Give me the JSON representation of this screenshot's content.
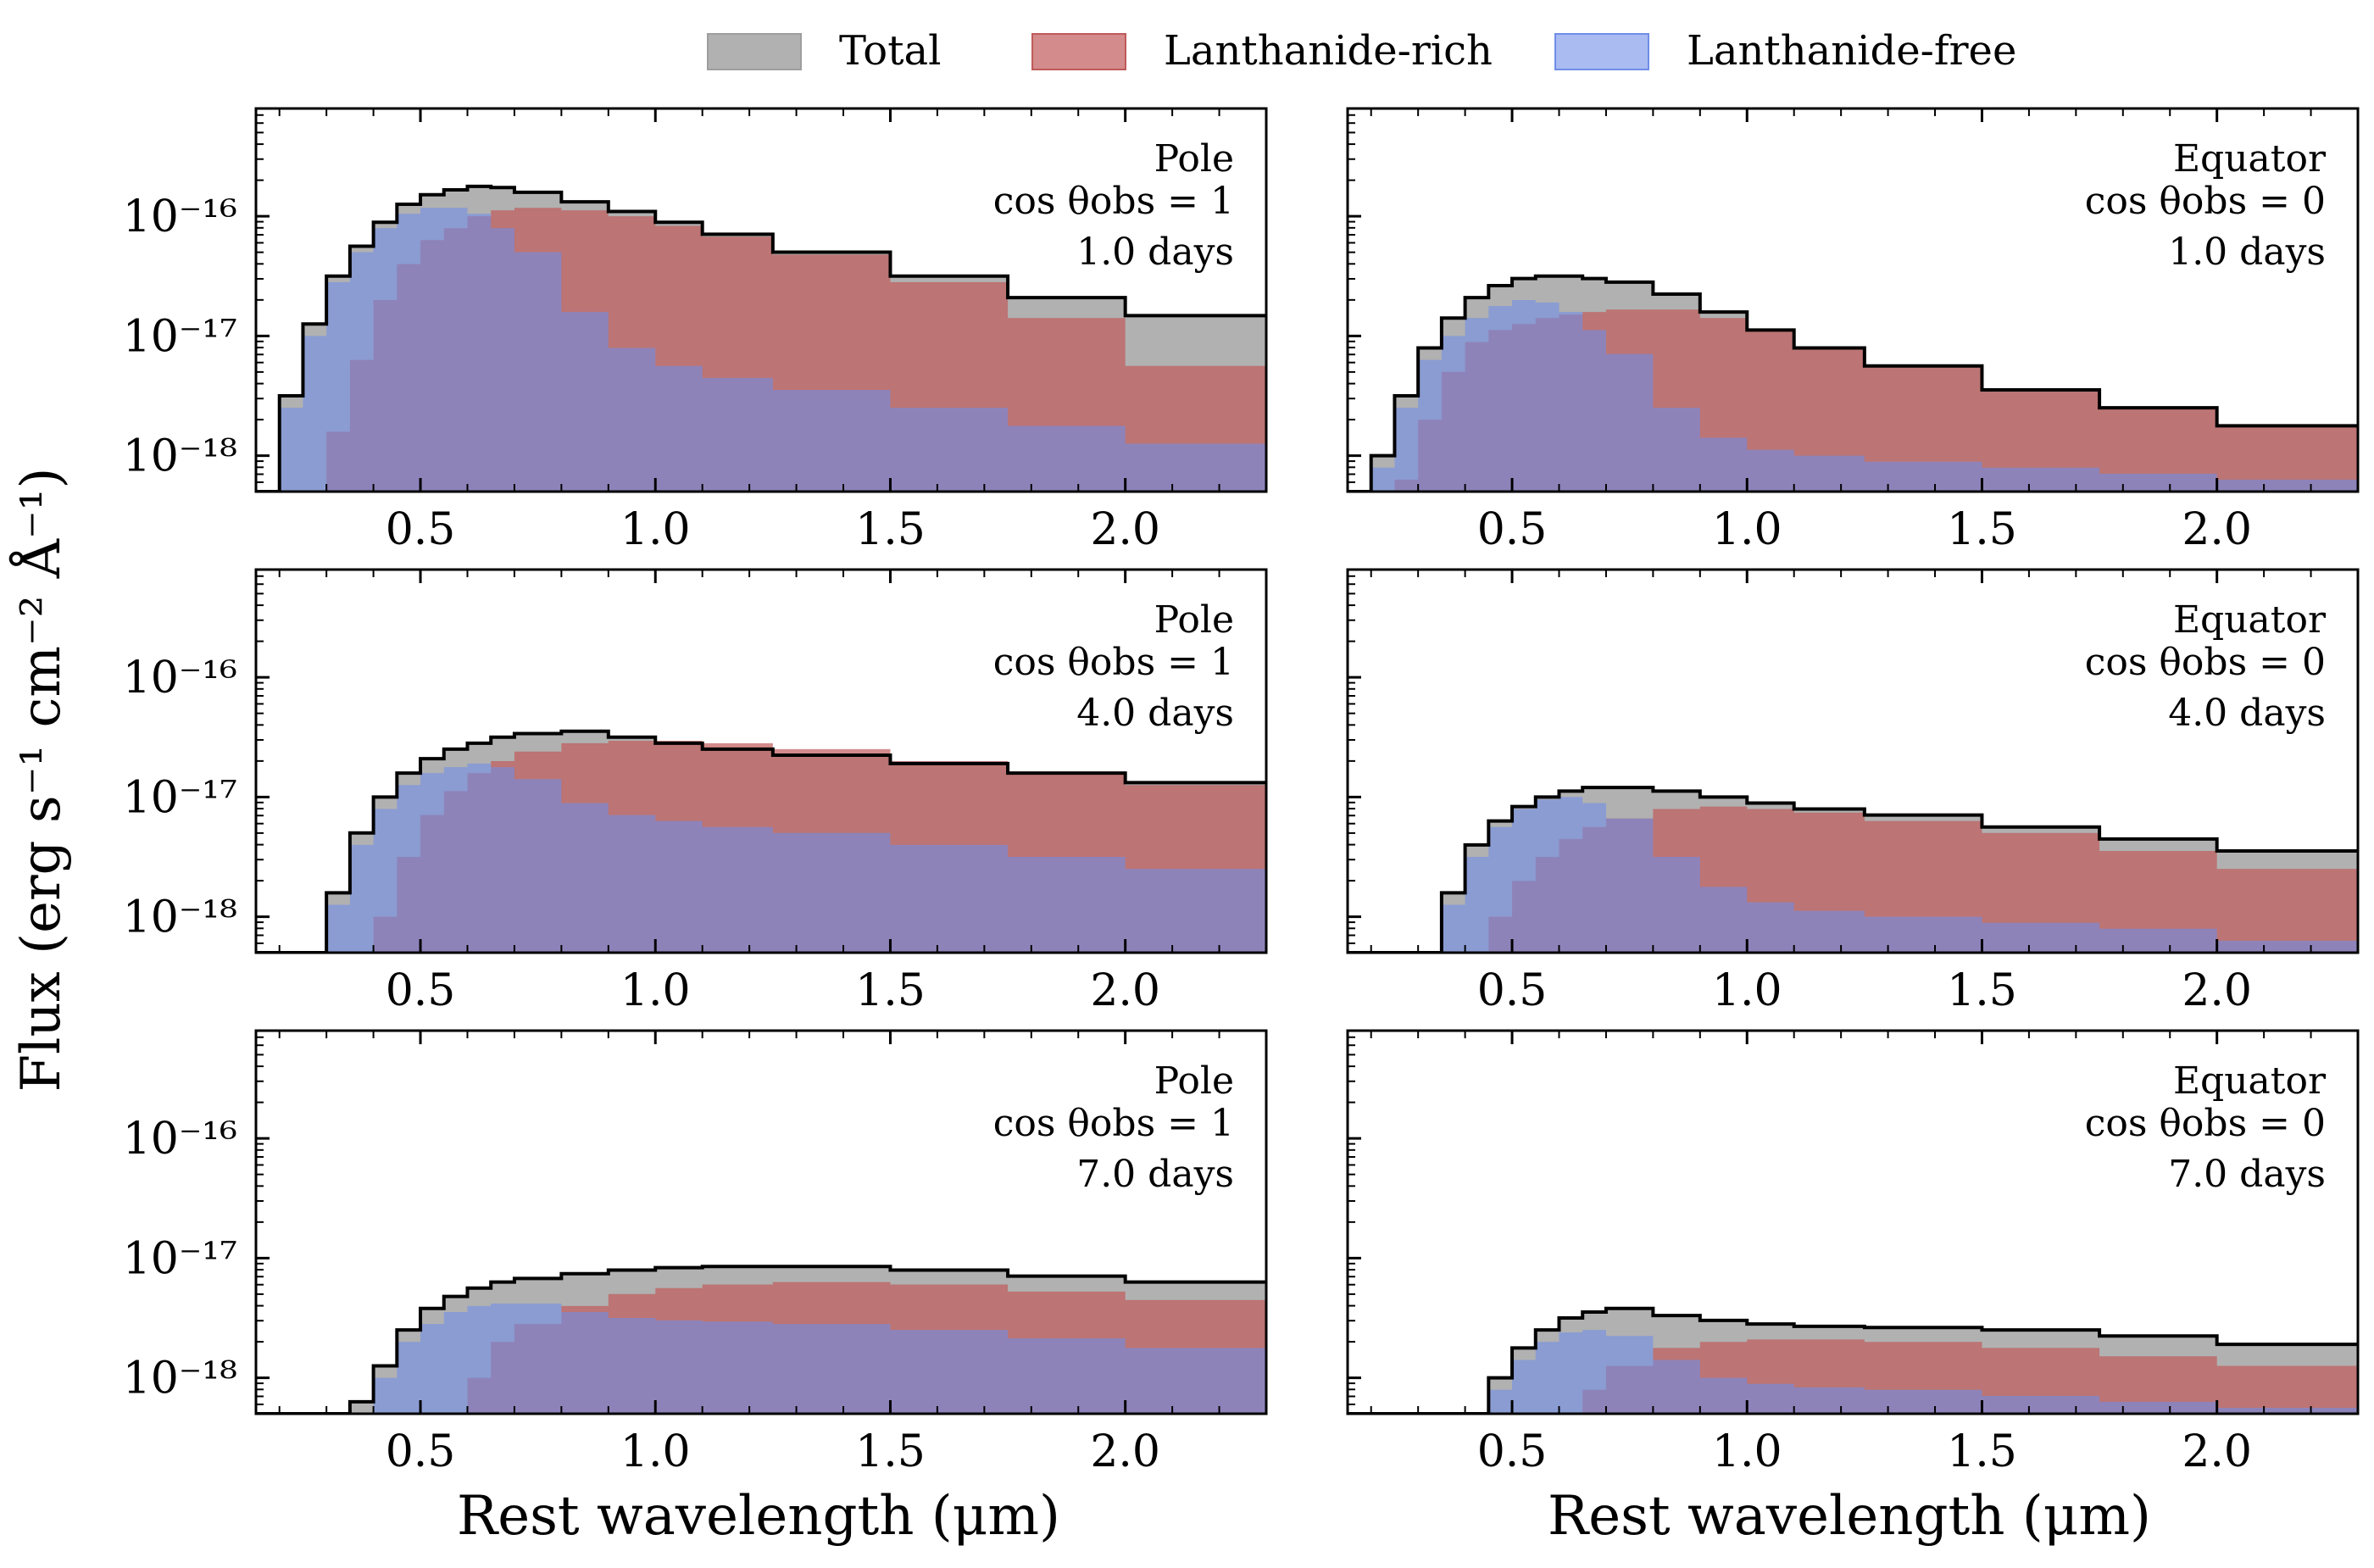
{
  "legend": [
    {
      "name": "Total",
      "color": "#9e9e9e"
    },
    {
      "name": "Lanthanide-rich",
      "color": "#c05a5a"
    },
    {
      "name": "Lanthanide-free",
      "color": "#6f8ee8"
    }
  ],
  "axes": {
    "xlabel": "Rest wavelength (μm)",
    "ylabel": "Flux (erg s⁻¹ cm⁻² Å⁻¹)",
    "xlim": [
      0.15,
      2.3
    ],
    "ylim_log10": [
      -18.3,
      -15.1
    ],
    "xticks": [
      "0.5",
      "1.0",
      "1.5",
      "2.0"
    ],
    "yticks": [
      "10⁻¹⁶",
      "10⁻¹⁷",
      "10⁻¹⁸"
    ]
  },
  "chart_data": [
    {
      "type": "area",
      "title": "Pole",
      "subtitle": "cos θobs = 1",
      "time": "1.0 days",
      "x": [
        0.15,
        0.2,
        0.25,
        0.3,
        0.35,
        0.4,
        0.45,
        0.5,
        0.55,
        0.6,
        0.65,
        0.7,
        0.8,
        0.9,
        1.0,
        1.1,
        1.25,
        1.5,
        1.75,
        2.0,
        2.3
      ],
      "series": [
        {
          "name": "Total",
          "log10_flux": [
            -18.3,
            -17.5,
            -16.9,
            -16.5,
            -16.25,
            -16.05,
            -15.9,
            -15.82,
            -15.78,
            -15.75,
            -15.76,
            -15.8,
            -15.88,
            -15.96,
            -16.05,
            -16.15,
            -16.3,
            -16.5,
            -16.68,
            -16.83,
            -16.9
          ]
        },
        {
          "name": "Lanthanide-rich",
          "log10_flux": [
            -18.3,
            -18.3,
            -18.3,
            -17.8,
            -17.2,
            -16.7,
            -16.4,
            -16.2,
            -16.1,
            -16.0,
            -15.95,
            -15.93,
            -15.95,
            -16.0,
            -16.08,
            -16.17,
            -16.32,
            -16.55,
            -16.85,
            -17.25,
            -17.7
          ]
        },
        {
          "name": "Lanthanide-free",
          "log10_flux": [
            -18.3,
            -17.6,
            -17.0,
            -16.55,
            -16.3,
            -16.1,
            -15.98,
            -15.93,
            -15.93,
            -15.98,
            -16.1,
            -16.3,
            -16.8,
            -17.1,
            -17.25,
            -17.35,
            -17.45,
            -17.6,
            -17.75,
            -17.9,
            -18.05
          ]
        }
      ]
    },
    {
      "type": "area",
      "title": "Equator",
      "subtitle": "cos θobs = 0",
      "time": "1.0 days",
      "x": [
        0.15,
        0.2,
        0.25,
        0.3,
        0.35,
        0.4,
        0.45,
        0.5,
        0.55,
        0.6,
        0.65,
        0.7,
        0.8,
        0.9,
        1.0,
        1.1,
        1.25,
        1.5,
        1.75,
        2.0,
        2.3
      ],
      "series": [
        {
          "name": "Total",
          "log10_flux": [
            -18.3,
            -18.0,
            -17.5,
            -17.1,
            -16.85,
            -16.68,
            -16.58,
            -16.52,
            -16.5,
            -16.5,
            -16.52,
            -16.55,
            -16.65,
            -16.8,
            -16.95,
            -17.1,
            -17.25,
            -17.45,
            -17.6,
            -17.75,
            -17.9
          ]
        },
        {
          "name": "Lanthanide-rich",
          "log10_flux": [
            -18.3,
            -18.3,
            -18.2,
            -17.7,
            -17.3,
            -17.05,
            -16.95,
            -16.9,
            -16.85,
            -16.82,
            -16.8,
            -16.78,
            -16.78,
            -16.85,
            -16.95,
            -17.1,
            -17.25,
            -17.45,
            -17.6,
            -17.75,
            -17.95
          ]
        },
        {
          "name": "Lanthanide-free",
          "log10_flux": [
            -18.3,
            -18.1,
            -17.6,
            -17.2,
            -17.0,
            -16.85,
            -16.75,
            -16.7,
            -16.72,
            -16.8,
            -16.95,
            -17.15,
            -17.6,
            -17.85,
            -17.95,
            -18.0,
            -18.05,
            -18.1,
            -18.15,
            -18.2,
            -18.25
          ]
        }
      ]
    },
    {
      "type": "area",
      "title": "Pole",
      "subtitle": "cos θobs = 1",
      "time": "4.0 days",
      "x": [
        0.15,
        0.2,
        0.25,
        0.3,
        0.35,
        0.4,
        0.45,
        0.5,
        0.55,
        0.6,
        0.65,
        0.7,
        0.8,
        0.9,
        1.0,
        1.1,
        1.25,
        1.5,
        1.75,
        2.0,
        2.3
      ],
      "series": [
        {
          "name": "Total",
          "log10_flux": [
            -18.3,
            -18.3,
            -18.3,
            -17.8,
            -17.3,
            -17.0,
            -16.8,
            -16.68,
            -16.6,
            -16.55,
            -16.5,
            -16.47,
            -16.45,
            -16.5,
            -16.55,
            -16.6,
            -16.65,
            -16.72,
            -16.8,
            -16.88,
            -16.95
          ]
        },
        {
          "name": "Lanthanide-rich",
          "log10_flux": [
            -18.3,
            -18.3,
            -18.3,
            -18.3,
            -18.3,
            -18.0,
            -17.5,
            -17.15,
            -16.95,
            -16.8,
            -16.7,
            -16.62,
            -16.55,
            -16.53,
            -16.53,
            -16.55,
            -16.6,
            -16.7,
            -16.8,
            -16.9,
            -17.0
          ]
        },
        {
          "name": "Lanthanide-free",
          "log10_flux": [
            -18.3,
            -18.3,
            -18.3,
            -17.9,
            -17.4,
            -17.1,
            -16.9,
            -16.8,
            -16.75,
            -16.72,
            -16.75,
            -16.85,
            -17.05,
            -17.15,
            -17.2,
            -17.25,
            -17.3,
            -17.4,
            -17.5,
            -17.6,
            -17.7
          ]
        }
      ]
    },
    {
      "type": "area",
      "title": "Equator",
      "subtitle": "cos θobs = 0",
      "time": "4.0 days",
      "x": [
        0.15,
        0.2,
        0.25,
        0.3,
        0.35,
        0.4,
        0.45,
        0.5,
        0.55,
        0.6,
        0.65,
        0.7,
        0.8,
        0.9,
        1.0,
        1.1,
        1.25,
        1.5,
        1.75,
        2.0,
        2.3
      ],
      "series": [
        {
          "name": "Total",
          "log10_flux": [
            -18.3,
            -18.3,
            -18.3,
            -18.3,
            -17.8,
            -17.4,
            -17.2,
            -17.08,
            -17.0,
            -16.95,
            -16.92,
            -16.92,
            -16.95,
            -17.0,
            -17.05,
            -17.1,
            -17.15,
            -17.25,
            -17.35,
            -17.45,
            -17.55
          ]
        },
        {
          "name": "Lanthanide-rich",
          "log10_flux": [
            -18.3,
            -18.3,
            -18.3,
            -18.3,
            -18.3,
            -18.3,
            -18.0,
            -17.7,
            -17.5,
            -17.35,
            -17.25,
            -17.18,
            -17.1,
            -17.08,
            -17.1,
            -17.13,
            -17.2,
            -17.3,
            -17.45,
            -17.6,
            -17.75
          ]
        },
        {
          "name": "Lanthanide-free",
          "log10_flux": [
            -18.3,
            -18.3,
            -18.3,
            -18.3,
            -17.9,
            -17.5,
            -17.25,
            -17.1,
            -17.02,
            -17.0,
            -17.05,
            -17.18,
            -17.5,
            -17.75,
            -17.88,
            -17.95,
            -18.0,
            -18.05,
            -18.1,
            -18.2,
            -18.25
          ]
        }
      ]
    },
    {
      "type": "area",
      "title": "Pole",
      "subtitle": "cos θobs = 1",
      "time": "7.0 days",
      "x": [
        0.15,
        0.2,
        0.25,
        0.3,
        0.35,
        0.4,
        0.45,
        0.5,
        0.55,
        0.6,
        0.65,
        0.7,
        0.8,
        0.9,
        1.0,
        1.1,
        1.25,
        1.5,
        1.75,
        2.0,
        2.3
      ],
      "series": [
        {
          "name": "Total",
          "log10_flux": [
            -18.3,
            -18.3,
            -18.3,
            -18.3,
            -18.2,
            -17.9,
            -17.6,
            -17.42,
            -17.32,
            -17.25,
            -17.2,
            -17.17,
            -17.13,
            -17.1,
            -17.08,
            -17.07,
            -17.07,
            -17.1,
            -17.15,
            -17.2,
            -17.28
          ]
        },
        {
          "name": "Lanthanide-rich",
          "log10_flux": [
            -18.3,
            -18.3,
            -18.3,
            -18.3,
            -18.3,
            -18.3,
            -18.3,
            -18.3,
            -18.3,
            -18.0,
            -17.7,
            -17.55,
            -17.4,
            -17.3,
            -17.25,
            -17.22,
            -17.2,
            -17.22,
            -17.28,
            -17.35,
            -17.45
          ]
        },
        {
          "name": "Lanthanide-free",
          "log10_flux": [
            -18.3,
            -18.3,
            -18.3,
            -18.3,
            -18.3,
            -18.0,
            -17.7,
            -17.55,
            -17.45,
            -17.4,
            -17.38,
            -17.38,
            -17.45,
            -17.5,
            -17.52,
            -17.53,
            -17.55,
            -17.6,
            -17.67,
            -17.75,
            -17.85
          ]
        }
      ]
    },
    {
      "type": "area",
      "title": "Equator",
      "subtitle": "cos θobs = 0",
      "time": "7.0 days",
      "x": [
        0.15,
        0.2,
        0.25,
        0.3,
        0.35,
        0.4,
        0.45,
        0.5,
        0.55,
        0.6,
        0.65,
        0.7,
        0.8,
        0.9,
        1.0,
        1.1,
        1.25,
        1.5,
        1.75,
        2.0,
        2.3
      ],
      "series": [
        {
          "name": "Total",
          "log10_flux": [
            -18.3,
            -18.3,
            -18.3,
            -18.3,
            -18.3,
            -18.3,
            -18.0,
            -17.75,
            -17.6,
            -17.5,
            -17.45,
            -17.42,
            -17.48,
            -17.52,
            -17.55,
            -17.57,
            -17.58,
            -17.6,
            -17.65,
            -17.72,
            -17.82
          ]
        },
        {
          "name": "Lanthanide-rich",
          "log10_flux": [
            -18.3,
            -18.3,
            -18.3,
            -18.3,
            -18.3,
            -18.3,
            -18.3,
            -18.3,
            -18.3,
            -18.3,
            -18.1,
            -17.9,
            -17.75,
            -17.7,
            -17.68,
            -17.68,
            -17.7,
            -17.75,
            -17.82,
            -17.9,
            -18.0
          ]
        },
        {
          "name": "Lanthanide-free",
          "log10_flux": [
            -18.3,
            -18.3,
            -18.3,
            -18.3,
            -18.3,
            -18.3,
            -18.1,
            -17.85,
            -17.7,
            -17.62,
            -17.6,
            -17.65,
            -17.85,
            -18.0,
            -18.05,
            -18.08,
            -18.1,
            -18.15,
            -18.2,
            -18.25,
            -18.3
          ]
        }
      ]
    }
  ]
}
